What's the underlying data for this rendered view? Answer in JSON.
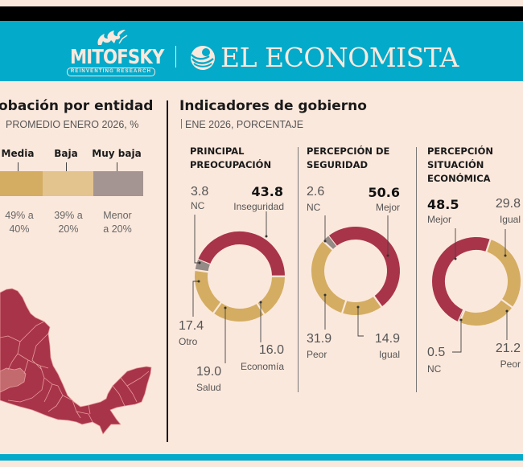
{
  "header": {
    "logo_left": {
      "name": "MITOFSKY",
      "tagline": "REINVENTING RESEARCH"
    },
    "logo_right": {
      "name": "EL ECONOMISTA"
    }
  },
  "left_panel": {
    "title": "obación por entidad",
    "subtitle": "PROMEDIO ENERO 2026, %",
    "legend": [
      {
        "label": "Media",
        "range_line1": "49% a",
        "range_line2": "40%",
        "color": "#d4ad62"
      },
      {
        "label": "Baja",
        "range_line1": "39% a",
        "range_line2": "20%",
        "color": "#e3c48f"
      },
      {
        "label": "Muy baja",
        "range_line1": "Menor",
        "range_line2": "a 20%",
        "color": "#a49592"
      }
    ],
    "map_colors": {
      "high": "#a8344a",
      "medium": "#c26a6e",
      "border": "#e89a9a"
    }
  },
  "right_panel": {
    "title": "Indicadores de gobierno",
    "subtitle": "ENE 2026, PORCENTAJE"
  },
  "colors": {
    "red": "#a8344a",
    "gold": "#d4ad62",
    "gray": "#948a86",
    "banner": "#03aaca",
    "background": "#fbe8dc"
  },
  "chart_data": [
    {
      "type": "pie",
      "title": "PRINCIPAL\nPREOCUPACIÓN",
      "categories": [
        "Inseguridad",
        "Economía",
        "Salud",
        "Otro",
        "NC"
      ],
      "values": [
        43.8,
        16.0,
        19.0,
        17.4,
        3.8
      ],
      "labels": [
        "43.8",
        "16.0",
        "19.0",
        "17.4",
        "3.8"
      ],
      "highlight": "Inseguridad",
      "hole": true
    },
    {
      "type": "pie",
      "title": "PERCEPCIÓN DE\nSEGURIDAD",
      "categories": [
        "Mejor",
        "Igual",
        "Peor",
        "NC"
      ],
      "values": [
        50.6,
        14.9,
        31.9,
        2.6
      ],
      "labels": [
        "50.6",
        "14.9",
        "31.9",
        "2.6"
      ],
      "highlight": "Mejor",
      "hole": true
    },
    {
      "type": "pie",
      "title": "PERCEPCIÓN\nSITUACIÓN\nECONÓMICA",
      "categories": [
        "Mejor",
        "Igual",
        "Peor",
        "NC"
      ],
      "values": [
        48.5,
        29.8,
        21.2,
        0.5
      ],
      "labels": [
        "48.5",
        "29.8",
        "21.2",
        "0.5"
      ],
      "highlight": "Mejor",
      "hole": true
    }
  ]
}
